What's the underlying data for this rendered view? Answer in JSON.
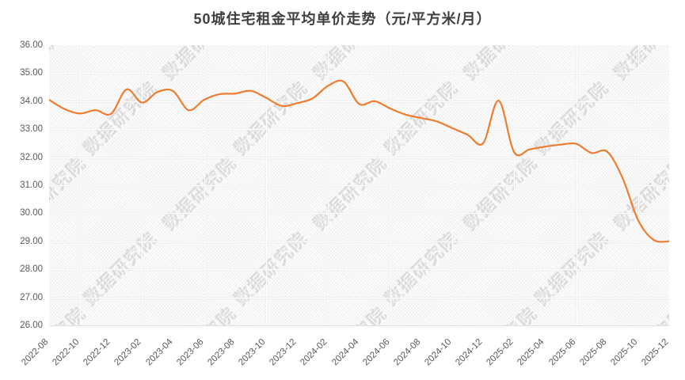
{
  "title": "50城住宅租金平均单价走势（元/平方米/月）",
  "watermark": {
    "text": "数据研究院"
  },
  "colors": {
    "line": "#ED7D31",
    "title_text": "#3F3F3F",
    "axis_text": "#595959",
    "grid": "#E6E6E6"
  },
  "chart_data": {
    "type": "line",
    "title": "50城住宅租金平均单价走势（元/平方米/月）",
    "xlabel": "",
    "ylabel": "",
    "ylim": [
      26,
      36
    ],
    "ytick_labels": [
      "36.00",
      "35.00",
      "34.00",
      "33.00",
      "32.00",
      "31.00",
      "30.00",
      "29.00",
      "28.00",
      "27.00",
      "26.00"
    ],
    "grid": true,
    "legend_position": "none",
    "smooth_line": true,
    "x": [
      "2022-08",
      "2022-09",
      "2022-10",
      "2022-11",
      "2022-12",
      "2023-01",
      "2023-02",
      "2023-03",
      "2023-04",
      "2023-05",
      "2023-06",
      "2023-07",
      "2023-08",
      "2023-09",
      "2023-10",
      "2023-11",
      "2023-12",
      "2024-01",
      "2024-02",
      "2024-03",
      "2024-04",
      "2024-05",
      "2024-06",
      "2024-07",
      "2024-08",
      "2024-09",
      "2024-10",
      "2024-11",
      "2024-12",
      "2025-01",
      "2025-02",
      "2025-03",
      "2025-04",
      "2025-05",
      "2025-06",
      "2025-07",
      "2025-08",
      "2025-09",
      "2025-10",
      "2025-11",
      "2025-12"
    ],
    "x_tick_labels": [
      "2022-08",
      "2022-10",
      "2022-12",
      "2023-02",
      "2023-04",
      "2023-06",
      "2023-08",
      "2023-10",
      "2023-12",
      "2024-02",
      "2024-04",
      "2024-06",
      "2024-08",
      "2024-10",
      "2024-12",
      "2025-02",
      "2025-04",
      "2025-06",
      "2025-08",
      "2025-10",
      "2025-12"
    ],
    "series": [
      {
        "name": "50城住宅租金平均单价",
        "values": [
          34.05,
          33.72,
          33.56,
          33.68,
          33.55,
          34.42,
          33.95,
          34.33,
          34.36,
          33.68,
          34.05,
          34.25,
          34.27,
          34.37,
          34.12,
          33.83,
          33.93,
          34.1,
          34.55,
          34.7,
          33.9,
          34.0,
          33.74,
          33.52,
          33.4,
          33.28,
          33.04,
          32.8,
          32.5,
          34.02,
          32.18,
          32.28,
          32.38,
          32.45,
          32.48,
          32.15,
          32.2,
          31.25,
          29.75,
          29.05,
          29.0
        ]
      }
    ]
  }
}
